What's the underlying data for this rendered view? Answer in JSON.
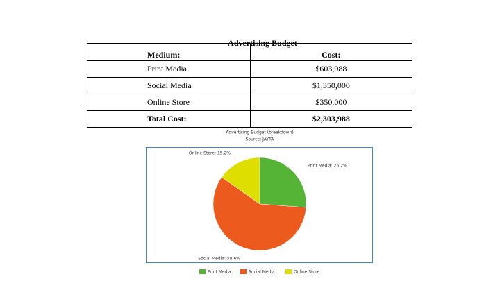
{
  "table": {
    "title": "Advertising Budget",
    "header": [
      "Medium:",
      "Cost:"
    ],
    "rows": [
      [
        "Print Media",
        "$603,988"
      ],
      [
        "Social Media",
        "$1,350,000"
      ],
      [
        "Online Store",
        "$350,000"
      ]
    ],
    "total": [
      "Total Cost:",
      "$2,303,988"
    ]
  },
  "chart_data": {
    "type": "pie",
    "title": "Advertising Budget (breakdown)",
    "subtitle": "Source: JAYTA",
    "categories": [
      "Print Media",
      "Social Media",
      "Online Store"
    ],
    "values": [
      26.2,
      58.6,
      15.2
    ],
    "value_labels": [
      "Print Media: 26.2%",
      "Social Media: 58.6%",
      "Online Store: 15.2%"
    ],
    "colors": [
      "#55b435",
      "#ec5a1e",
      "#dede00"
    ]
  }
}
